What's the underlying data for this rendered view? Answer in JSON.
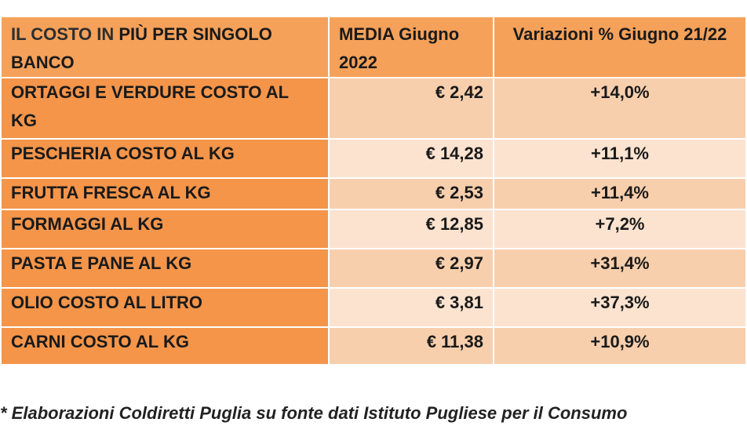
{
  "header": {
    "col1_prefix": "IL COSTO IN",
    "col1_rest": " PIÙ PER SINGOLO BANCO",
    "col2": "MEDIA Giugno 2022",
    "col3": "Variazioni % Giugno 21/22"
  },
  "rows": [
    {
      "label": "ORTAGGI E VERDURE COSTO AL KG",
      "media": "€ 2,42",
      "var": "+14,0%"
    },
    {
      "label": "PESCHERIA COSTO AL KG",
      "media": "€ 14,28",
      "var": "+11,1%"
    },
    {
      "label": "FRUTTA FRESCA AL KG",
      "media": "€ 2,53",
      "var": "+11,4%"
    },
    {
      "label": "FORMAGGI AL KG",
      "media": "€ 12,85",
      "var": "+7,2%"
    },
    {
      "label": "PASTA E PANE AL KG",
      "media": "€ 2,97",
      "var": "+31,4%"
    },
    {
      "label": "OLIO COSTO AL LITRO",
      "media": "€ 3,81",
      "var": "+37,3%"
    },
    {
      "label": "CARNI COSTO AL KG",
      "media": "€ 11,38",
      "var": "+10,9%"
    }
  ],
  "footnote": "* Elaborazioni Coldiretti Puglia su fonte dati Istituto Pugliese per il Consumo",
  "colors": {
    "header": "#f5a15a",
    "label_col": "#f4954a",
    "cell_a": "#f8cfad",
    "cell_b": "#fbe3d0"
  }
}
